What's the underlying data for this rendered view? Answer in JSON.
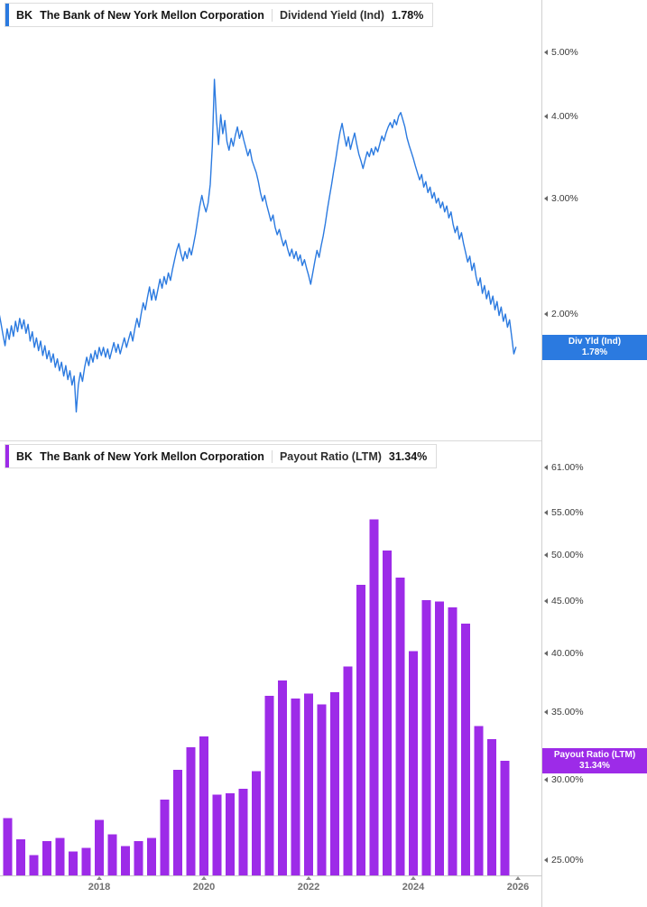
{
  "charts": {
    "top": {
      "header": {
        "ticker": "BK",
        "company": "The Bank of New York Mellon Corporation",
        "metric": "Dividend Yield (Ind)",
        "value": "1.78%"
      },
      "value_box": {
        "title": "Div Yld (Ind)",
        "value": "1.78%"
      }
    },
    "bottom": {
      "header": {
        "ticker": "BK",
        "company": "The Bank of New York Mellon Corporation",
        "metric": "Payout Ratio (LTM)",
        "value": "31.34%"
      },
      "value_box": {
        "title": "Payout Ratio (LTM)",
        "value": "31.34%"
      }
    }
  },
  "x_axis": {
    "ticks": [
      {
        "value": 2018,
        "label": "2018"
      },
      {
        "value": 2020,
        "label": "2020"
      },
      {
        "value": 2022,
        "label": "2022"
      },
      {
        "value": 2024,
        "label": "2024"
      },
      {
        "value": 2026,
        "label": "2026"
      }
    ]
  },
  "chart_data": [
    {
      "type": "line",
      "title": "BK Dividend Yield (Ind)",
      "ylabel": "Dividend Yield",
      "y_scale": "log",
      "grid": false,
      "legend_position": "right-axis-badge",
      "x_unit": "decimal_year",
      "x_start": 2016.08,
      "x_step_years": 0.04,
      "x_range": [
        2016.08,
        2025.96
      ],
      "last_value": 1.78,
      "y_ticks": [
        {
          "value": 5,
          "label": "5.00%"
        },
        {
          "value": 4,
          "label": "4.00%"
        },
        {
          "value": 3,
          "label": "3.00%"
        },
        {
          "value": 2,
          "label": "2.00%"
        }
      ],
      "series": [
        {
          "name": "Dividend Yield (Ind)",
          "color": "#2b7ae0",
          "values": [
            2.02,
            1.94,
            1.86,
            1.79,
            1.9,
            1.83,
            1.92,
            1.85,
            1.95,
            1.88,
            1.97,
            1.9,
            1.96,
            1.87,
            1.93,
            1.82,
            1.88,
            1.78,
            1.84,
            1.76,
            1.82,
            1.73,
            1.79,
            1.71,
            1.76,
            1.69,
            1.74,
            1.66,
            1.71,
            1.64,
            1.69,
            1.61,
            1.67,
            1.59,
            1.64,
            1.56,
            1.61,
            1.42,
            1.56,
            1.63,
            1.58,
            1.66,
            1.72,
            1.67,
            1.74,
            1.69,
            1.76,
            1.71,
            1.78,
            1.73,
            1.78,
            1.72,
            1.77,
            1.71,
            1.76,
            1.81,
            1.75,
            1.8,
            1.74,
            1.79,
            1.84,
            1.78,
            1.83,
            1.88,
            1.82,
            1.9,
            1.97,
            1.91,
            2.0,
            2.08,
            2.03,
            2.12,
            2.2,
            2.1,
            2.18,
            2.1,
            2.18,
            2.26,
            2.19,
            2.28,
            2.22,
            2.31,
            2.25,
            2.34,
            2.42,
            2.5,
            2.56,
            2.47,
            2.41,
            2.49,
            2.43,
            2.52,
            2.46,
            2.55,
            2.65,
            2.78,
            2.92,
            3.03,
            2.93,
            2.86,
            2.95,
            3.15,
            3.6,
            4.55,
            3.95,
            3.62,
            4.02,
            3.76,
            3.94,
            3.66,
            3.55,
            3.7,
            3.6,
            3.74,
            3.85,
            3.7,
            3.8,
            3.68,
            3.58,
            3.48,
            3.56,
            3.42,
            3.35,
            3.28,
            3.18,
            3.06,
            2.97,
            3.03,
            2.93,
            2.85,
            2.77,
            2.83,
            2.71,
            2.64,
            2.69,
            2.61,
            2.54,
            2.59,
            2.51,
            2.45,
            2.51,
            2.43,
            2.49,
            2.41,
            2.46,
            2.37,
            2.42,
            2.35,
            2.29,
            2.22,
            2.31,
            2.41,
            2.5,
            2.44,
            2.54,
            2.63,
            2.75,
            2.89,
            3.02,
            3.15,
            3.3,
            3.45,
            3.62,
            3.78,
            3.9,
            3.74,
            3.6,
            3.72,
            3.56,
            3.67,
            3.77,
            3.62,
            3.5,
            3.42,
            3.33,
            3.43,
            3.53,
            3.47,
            3.57,
            3.49,
            3.59,
            3.53,
            3.63,
            3.73,
            3.67,
            3.77,
            3.85,
            3.91,
            3.84,
            3.95,
            3.88,
            4.0,
            4.05,
            3.95,
            3.85,
            3.71,
            3.61,
            3.53,
            3.45,
            3.36,
            3.28,
            3.2,
            3.26,
            3.12,
            3.18,
            3.06,
            3.12,
            3.0,
            3.06,
            2.95,
            3.0,
            2.9,
            2.96,
            2.86,
            2.92,
            2.8,
            2.86,
            2.74,
            2.66,
            2.72,
            2.6,
            2.66,
            2.56,
            2.48,
            2.4,
            2.45,
            2.33,
            2.39,
            2.28,
            2.21,
            2.27,
            2.15,
            2.21,
            2.11,
            2.17,
            2.07,
            2.13,
            2.03,
            2.09,
            1.99,
            2.05,
            1.95,
            2.0,
            1.91,
            1.96,
            1.85,
            1.74,
            1.78
          ]
        }
      ]
    },
    {
      "type": "bar",
      "title": "BK Payout Ratio (LTM)",
      "ylabel": "Payout Ratio",
      "y_scale": "log",
      "grid": false,
      "legend_position": "right-axis-badge",
      "x_unit": "decimal_year",
      "x_start": 2016.0,
      "x_step_years": 0.25,
      "last_value": 31.34,
      "color": "#9d2be8",
      "y_ticks": [
        {
          "value": 61,
          "label": "61.00%"
        },
        {
          "value": 55,
          "label": "55.00%"
        },
        {
          "value": 50,
          "label": "50.00%"
        },
        {
          "value": 45,
          "label": "45.00%"
        },
        {
          "value": 40,
          "label": "40.00%"
        },
        {
          "value": 35,
          "label": "35.00%"
        },
        {
          "value": 30,
          "label": "30.00%"
        },
        {
          "value": 25,
          "label": "25.00%"
        }
      ],
      "categories": [
        "Q1 2016",
        "Q2 2016",
        "Q3 2016",
        "Q4 2016",
        "Q1 2017",
        "Q2 2017",
        "Q3 2017",
        "Q4 2017",
        "Q1 2018",
        "Q2 2018",
        "Q3 2018",
        "Q4 2018",
        "Q1 2019",
        "Q2 2019",
        "Q3 2019",
        "Q4 2019",
        "Q1 2020",
        "Q2 2020",
        "Q3 2020",
        "Q4 2020",
        "Q1 2021",
        "Q2 2021",
        "Q3 2021",
        "Q4 2021",
        "Q1 2022",
        "Q2 2022",
        "Q3 2022",
        "Q4 2022",
        "Q1 2023",
        "Q2 2023",
        "Q3 2023",
        "Q4 2023",
        "Q1 2024",
        "Q2 2024",
        "Q3 2024",
        "Q4 2024",
        "Q1 2025",
        "Q2 2025",
        "Q3 2025",
        "Q4 2025"
      ],
      "values": [
        27.4,
        27.5,
        26.2,
        25.3,
        26.1,
        26.3,
        25.5,
        25.7,
        27.4,
        26.5,
        25.8,
        26.1,
        26.3,
        28.7,
        30.7,
        32.3,
        33.1,
        29.0,
        29.1,
        29.4,
        30.6,
        36.3,
        37.6,
        36.1,
        36.5,
        35.6,
        36.6,
        38.8,
        46.7,
        54.2,
        50.5,
        47.5,
        40.2,
        45.1,
        45.0,
        44.4,
        42.8,
        33.9,
        32.9,
        31.34
      ]
    }
  ]
}
